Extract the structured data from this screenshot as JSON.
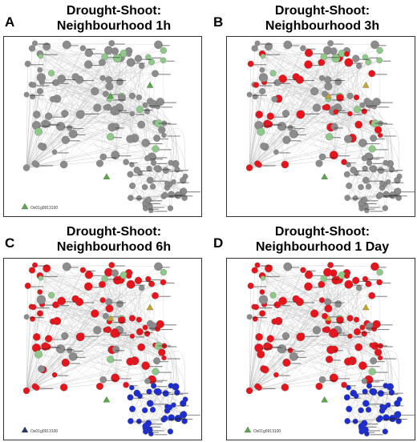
{
  "panels": [
    {
      "letter": "A",
      "title_line1": "Drought-Shoot:",
      "title_line2": "Neighbourhood 1h",
      "mode": "1h",
      "lone_node_label": "Os01g0913100"
    },
    {
      "letter": "B",
      "title_line1": "Drought-Shoot:",
      "title_line2": "Neighbourhood 3h",
      "mode": "3h",
      "lone_node_label": ""
    },
    {
      "letter": "C",
      "title_line1": "Drought-Shoot:",
      "title_line2": "Neighbourhood 6h",
      "mode": "6h",
      "lone_node_label": "Os01g0913100"
    },
    {
      "letter": "D",
      "title_line1": "Drought-Shoot:",
      "title_line2": "Neighbourhood 1 Day",
      "mode": "1d",
      "lone_node_label": "Os01g0913100"
    }
  ],
  "colors": {
    "grey": "#8c8c8c",
    "green": "#8fc98a",
    "red": "#e8141c",
    "blue": "#1c2dd1",
    "triangle_green": "#5aa84a",
    "triangle_yellow": "#c8a82a",
    "triangle_navy": "#1f3a6b",
    "edge": "#bdbdbd"
  }
}
